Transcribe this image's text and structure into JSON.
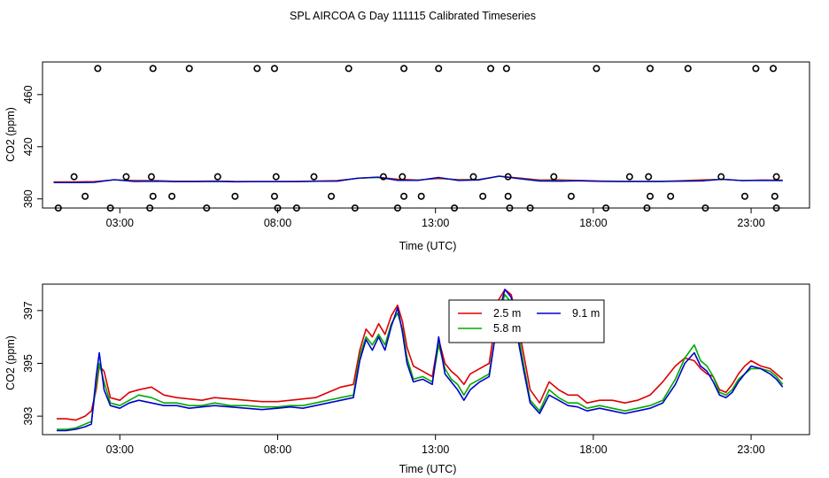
{
  "chart_data": {
    "title": "SPL AIRCOA G  Day 111115  Calibrated Timeseries",
    "panels": [
      {
        "type": "scatter+line",
        "xlabel": "Time (UTC)",
        "ylabel": "CO2 (ppm)",
        "xlim": [
          0.55,
          24.85
        ],
        "ylim": [
          373,
          485
        ],
        "xticks": [
          3,
          8,
          13,
          18,
          23
        ],
        "xtick_labels": [
          "03:00",
          "08:00",
          "13:00",
          "18:00",
          "23:00"
        ],
        "yticks": [
          380,
          420,
          460
        ],
        "ytick_labels": [
          "380",
          "420",
          "460"
        ],
        "scatter_points": [
          [
            2.3,
            480
          ],
          [
            4.05,
            480
          ],
          [
            5.2,
            480
          ],
          [
            7.35,
            480
          ],
          [
            7.9,
            480
          ],
          [
            10.25,
            480
          ],
          [
            12.0,
            480
          ],
          [
            13.1,
            480
          ],
          [
            14.75,
            480
          ],
          [
            15.25,
            480
          ],
          [
            18.1,
            480
          ],
          [
            19.8,
            480
          ],
          [
            21.0,
            480
          ],
          [
            23.15,
            480
          ],
          [
            23.7,
            480
          ],
          [
            1.55,
            397
          ],
          [
            3.2,
            397
          ],
          [
            4.0,
            397
          ],
          [
            6.1,
            397
          ],
          [
            7.95,
            397
          ],
          [
            9.15,
            397
          ],
          [
            11.35,
            397
          ],
          [
            11.95,
            397
          ],
          [
            14.2,
            397
          ],
          [
            15.3,
            397
          ],
          [
            16.75,
            397
          ],
          [
            19.15,
            397
          ],
          [
            19.75,
            397
          ],
          [
            22.05,
            397
          ],
          [
            23.8,
            397
          ],
          [
            1.9,
            382
          ],
          [
            4.05,
            382
          ],
          [
            4.65,
            382
          ],
          [
            6.65,
            382
          ],
          [
            7.9,
            382
          ],
          [
            9.7,
            382
          ],
          [
            12.0,
            382
          ],
          [
            12.55,
            382
          ],
          [
            14.5,
            382
          ],
          [
            15.3,
            382
          ],
          [
            17.3,
            382
          ],
          [
            19.8,
            382
          ],
          [
            20.45,
            382
          ],
          [
            22.8,
            382
          ],
          [
            23.75,
            382
          ],
          [
            1.05,
            373
          ],
          [
            2.7,
            373
          ],
          [
            3.95,
            373
          ],
          [
            5.75,
            373
          ],
          [
            8.0,
            373
          ],
          [
            8.6,
            373
          ],
          [
            10.45,
            373
          ],
          [
            11.8,
            373
          ],
          [
            13.6,
            373
          ],
          [
            15.35,
            373
          ],
          [
            16.0,
            373
          ],
          [
            18.4,
            373
          ],
          [
            19.7,
            373
          ],
          [
            21.55,
            373
          ],
          [
            23.8,
            373
          ]
        ],
        "series": [
          {
            "name": "2.5 m",
            "color": "#dd0000",
            "values": [
              393,
              393,
              393.3,
              394.6,
              394.1,
              394.1,
              393.6,
              393.6,
              393.8,
              393.4,
              393.4,
              393.4,
              393.5,
              393.8,
              394.1,
              395.7,
              396.6,
              395.1,
              394.5,
              395.6,
              394.8,
              394.9,
              397.4,
              396,
              394.5,
              394.6,
              394.2,
              393.8,
              393.6,
              393.6,
              393.6,
              394,
              394.6,
              395,
              394.1,
              394.5,
              394.3
            ]
          },
          {
            "name": "5.8 m",
            "color": "#00aa00",
            "values": [
              392.5,
              392.5,
              392.8,
              394.6,
              393.5,
              393.8,
              393.3,
              393.3,
              393.5,
              393.2,
              393.3,
              393.3,
              393.3,
              393.5,
              393.7,
              395.9,
              396.4,
              394.4,
              394.3,
              396.2,
              394.3,
              394.8,
              397.3,
              395.6,
              394.1,
              394,
              393.8,
              393.5,
              393.4,
              393.4,
              393.4,
              393.7,
              393.9,
              395.2,
              394.1,
              394.2,
              394.1
            ]
          },
          {
            "name": "9.1 m",
            "color": "#0000cc",
            "values": [
              392.5,
              392.5,
              392.7,
              394.8,
              393.3,
              393.5,
              393.2,
              393.2,
              393.4,
              393.1,
              393.2,
              393.2,
              393.2,
              393.5,
              393.6,
              395.9,
              396.7,
              394.2,
              394.2,
              396.5,
              394.1,
              394.5,
              397.5,
              395.5,
              393.7,
              393.6,
              393.9,
              393.4,
              393.3,
              393.3,
              393.3,
              393.6,
              393.8,
              395,
              394,
              394.2,
              394
            ]
          }
        ]
      },
      {
        "type": "line",
        "xlabel": "Time (UTC)",
        "ylabel": "CO2 (ppm)",
        "xlim": [
          0.55,
          24.85
        ],
        "ylim": [
          392.3,
          398
        ],
        "xticks": [
          3,
          8,
          13,
          18,
          23
        ],
        "xtick_labels": [
          "03:00",
          "08:00",
          "13:00",
          "18:00",
          "23:00"
        ],
        "yticks": [
          393,
          395,
          397
        ],
        "ytick_labels": [
          "393",
          "395",
          "397"
        ],
        "legend": {
          "position": "top-center"
        },
        "x": [
          1.0,
          1.3,
          1.6,
          1.9,
          2.1,
          2.25,
          2.35,
          2.5,
          2.7,
          3.0,
          3.3,
          3.6,
          4.0,
          4.4,
          4.8,
          5.2,
          5.6,
          6.0,
          6.5,
          7.0,
          7.5,
          8.0,
          8.4,
          8.8,
          9.2,
          9.6,
          10.0,
          10.4,
          10.6,
          10.8,
          11.0,
          11.2,
          11.4,
          11.6,
          11.8,
          11.95,
          12.1,
          12.3,
          12.6,
          12.9,
          13.1,
          13.3,
          13.5,
          13.7,
          13.9,
          14.1,
          14.4,
          14.7,
          15.0,
          15.2,
          15.4,
          15.6,
          15.8,
          16.0,
          16.3,
          16.6,
          16.9,
          17.2,
          17.5,
          17.8,
          18.2,
          18.6,
          19.0,
          19.4,
          19.8,
          20.2,
          20.6,
          20.9,
          21.2,
          21.4,
          21.6,
          21.8,
          22.0,
          22.2,
          22.4,
          22.6,
          22.8,
          23.0,
          23.3,
          23.6,
          23.8,
          24.0
        ],
        "series": [
          {
            "name": "2.5 m",
            "color": "#dd0000",
            "values": [
              392.9,
              392.9,
              392.85,
              393.0,
              393.2,
              394.0,
              394.9,
              394.7,
              393.7,
              393.6,
              393.9,
              394.0,
              394.1,
              393.8,
              393.7,
              393.65,
              393.6,
              393.7,
              393.65,
              393.6,
              393.55,
              393.55,
              393.6,
              393.65,
              393.7,
              393.9,
              394.1,
              394.2,
              395.5,
              396.3,
              396.0,
              396.5,
              396.1,
              396.8,
              397.2,
              396.6,
              395.6,
              394.9,
              394.7,
              394.5,
              395.9,
              395.0,
              394.7,
              394.5,
              394.2,
              394.6,
              394.8,
              395.0,
              397.4,
              397.8,
              397.6,
              396.6,
              395.3,
              394.0,
              393.5,
              394.3,
              394.0,
              393.8,
              393.8,
              393.5,
              393.6,
              393.6,
              393.5,
              393.6,
              393.8,
              394.3,
              394.9,
              395.2,
              395.1,
              394.8,
              394.6,
              394.5,
              394.0,
              393.9,
              394.2,
              394.6,
              394.9,
              395.1,
              394.9,
              394.8,
              394.6,
              394.4
            ]
          },
          {
            "name": "5.8 m",
            "color": "#00aa00",
            "values": [
              392.5,
              392.5,
              392.55,
              392.7,
              392.8,
              394.2,
              395.0,
              394.3,
              393.5,
              393.4,
              393.6,
              393.8,
              393.7,
              393.5,
              393.5,
              393.4,
              393.4,
              393.5,
              393.4,
              393.4,
              393.35,
              393.35,
              393.4,
              393.4,
              393.5,
              393.6,
              393.7,
              393.8,
              395.3,
              396.0,
              395.7,
              396.1,
              395.7,
              396.5,
              396.9,
              396.3,
              395.2,
              394.4,
              394.5,
              394.3,
              395.7,
              394.8,
              394.4,
              394.2,
              393.8,
              394.2,
              394.4,
              394.6,
              396.9,
              397.6,
              397.3,
              396.3,
              394.9,
              393.6,
              393.2,
              394.0,
              393.7,
              393.5,
              393.5,
              393.3,
              393.4,
              393.3,
              393.2,
              393.3,
              393.4,
              393.6,
              394.4,
              395.2,
              395.7,
              395.1,
              394.9,
              394.5,
              393.9,
              393.8,
              394.0,
              394.4,
              394.6,
              394.8,
              394.8,
              394.7,
              394.5,
              394.2
            ]
          },
          {
            "name": "9.1 m",
            "color": "#0000cc",
            "values": [
              392.45,
              392.45,
              392.5,
              392.6,
              392.7,
              394.5,
              395.4,
              394.0,
              393.4,
              393.3,
              393.5,
              393.6,
              393.5,
              393.4,
              393.4,
              393.3,
              393.35,
              393.4,
              393.35,
              393.3,
              393.25,
              393.3,
              393.35,
              393.3,
              393.4,
              393.5,
              393.6,
              393.7,
              395.1,
              395.9,
              395.5,
              396.0,
              395.5,
              396.4,
              397.1,
              396.2,
              395.0,
              394.3,
              394.4,
              394.2,
              396.0,
              394.6,
              394.3,
              394.0,
              393.6,
              394.0,
              394.3,
              394.5,
              396.9,
              397.8,
              397.5,
              396.0,
              394.7,
              393.5,
              393.1,
              393.8,
              393.6,
              393.4,
              393.35,
              393.2,
              393.3,
              393.2,
              393.1,
              393.2,
              393.3,
              393.5,
              394.2,
              395.0,
              395.4,
              394.9,
              394.7,
              394.3,
              393.8,
              393.7,
              393.9,
              394.3,
              394.6,
              394.9,
              394.8,
              394.6,
              394.4,
              394.1
            ]
          }
        ]
      }
    ]
  }
}
